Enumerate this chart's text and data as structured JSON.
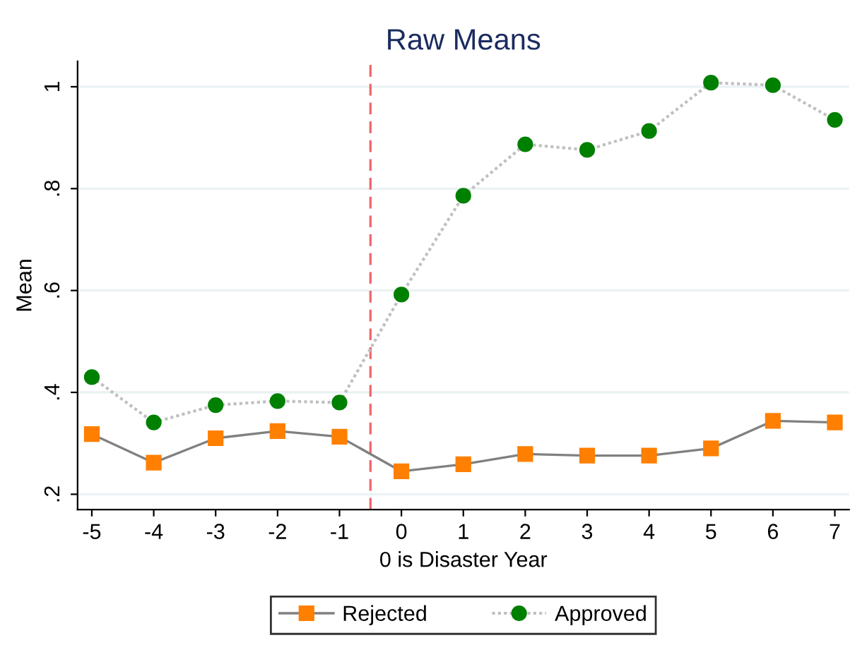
{
  "chart_data": {
    "type": "line",
    "title": "Raw Means",
    "xlabel": "0 is Disaster Year",
    "ylabel": "Mean",
    "x": [
      -5,
      -4,
      -3,
      -2,
      -1,
      0,
      1,
      2,
      3,
      4,
      5,
      6,
      7
    ],
    "series": [
      {
        "name": "Rejected",
        "color": "#ff7f00",
        "marker": "square",
        "line_style": "solid",
        "values": [
          0.318,
          0.262,
          0.31,
          0.324,
          0.313,
          0.245,
          0.259,
          0.279,
          0.276,
          0.276,
          0.29,
          0.344,
          0.341
        ]
      },
      {
        "name": "Approved",
        "color": "#008000",
        "marker": "circle",
        "line_style": "dotted",
        "values": [
          0.43,
          0.341,
          0.375,
          0.383,
          0.38,
          0.592,
          0.786,
          0.887,
          0.876,
          0.913,
          1.008,
          1.003,
          0.935
        ]
      }
    ],
    "xlim": [
      -5.23,
      7.23
    ],
    "ylim": [
      0.17,
      1.05
    ],
    "xticks": [
      {
        "value": -5,
        "label": "-5"
      },
      {
        "value": -4,
        "label": "-4"
      },
      {
        "value": -3,
        "label": "-3"
      },
      {
        "value": -2,
        "label": "-2"
      },
      {
        "value": -1,
        "label": "-1"
      },
      0,
      1,
      2,
      3,
      4,
      5,
      6,
      7
    ],
    "yticks": [
      {
        "value": 0.2,
        "label": ".2"
      },
      {
        "value": 0.4,
        "label": ".4"
      },
      {
        "value": 0.6,
        "label": ".6"
      },
      {
        "value": 0.8,
        "label": ".8"
      },
      1
    ],
    "ref_lines": [
      {
        "axis": "x",
        "value": -0.5,
        "color": "#f0686e",
        "line_style": "dashed"
      }
    ],
    "grid": "y",
    "legend": "bottom"
  }
}
